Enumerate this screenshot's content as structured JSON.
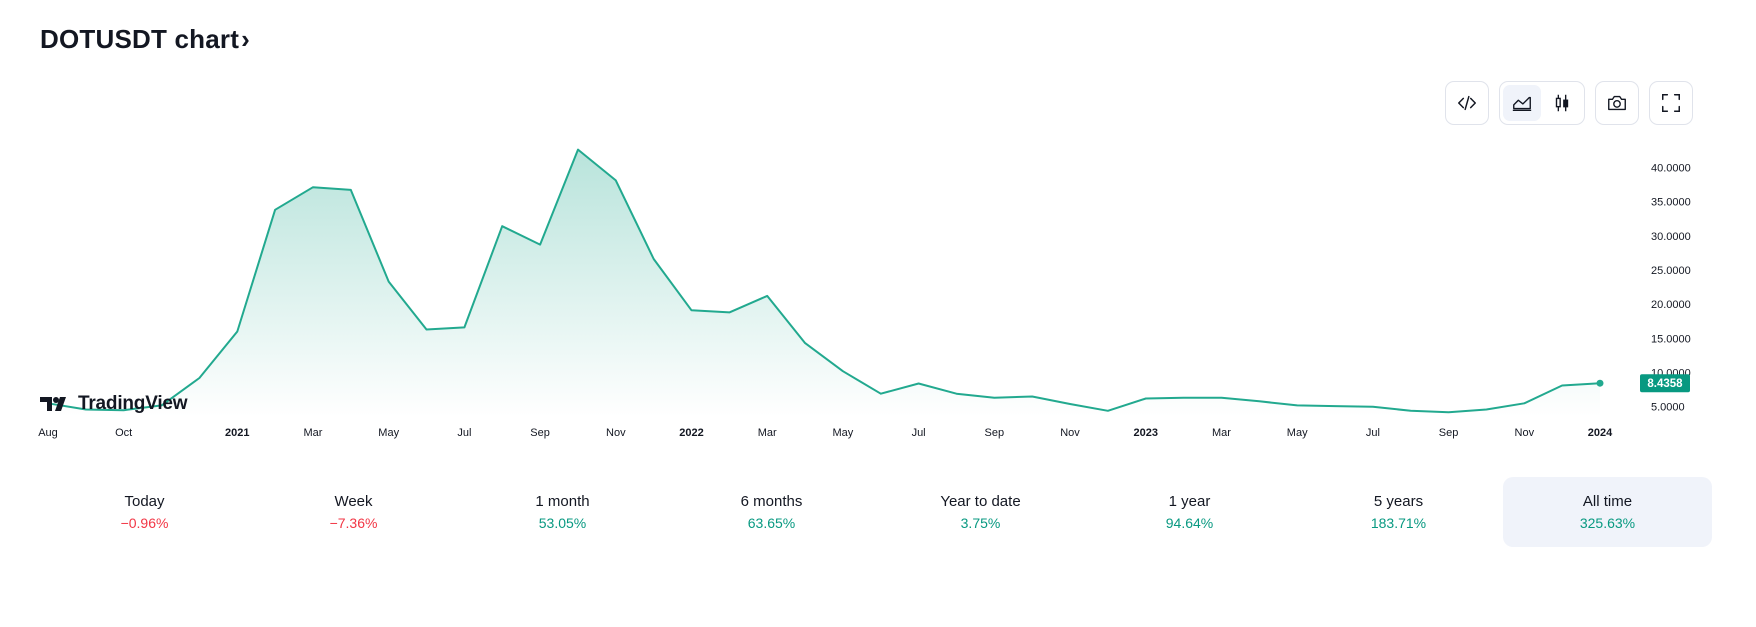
{
  "header": {
    "title": "DOTUSDT chart",
    "title_chevron": "›"
  },
  "toolbar": {
    "buttons": [
      {
        "name": "embed-code-button",
        "icon": "code-icon"
      },
      {
        "name": "line-chart-button",
        "icon": "area-chart-icon",
        "active": true
      },
      {
        "name": "candle-chart-button",
        "icon": "candles-icon"
      },
      {
        "name": "snapshot-button",
        "icon": "camera-icon"
      },
      {
        "name": "fullscreen-button",
        "icon": "fullscreen-icon"
      }
    ]
  },
  "watermark": {
    "logo_text": "TradingView"
  },
  "colors": {
    "line": "#22a98f",
    "area_top": "#22a98f",
    "pos": "#089981",
    "neg": "#f23645",
    "badge": "#089981"
  },
  "chart_data": {
    "type": "area",
    "x": [
      "2020-08",
      "2020-09",
      "2020-10",
      "2020-11",
      "2020-12",
      "2021-01",
      "2021-02",
      "2021-03",
      "2021-04",
      "2021-05",
      "2021-06",
      "2021-07",
      "2021-08",
      "2021-09",
      "2021-10",
      "2021-11",
      "2021-12",
      "2022-01",
      "2022-02",
      "2022-03",
      "2022-04",
      "2022-05",
      "2022-06",
      "2022-07",
      "2022-08",
      "2022-09",
      "2022-10",
      "2022-11",
      "2022-12",
      "2023-01",
      "2023-02",
      "2023-03",
      "2023-04",
      "2023-05",
      "2023-06",
      "2023-07",
      "2023-08",
      "2023-09",
      "2023-10",
      "2023-11",
      "2023-12",
      "2024-01"
    ],
    "values": [
      5.5,
      4.6,
      4.5,
      5.2,
      9.2,
      16.0,
      33.8,
      37.1,
      36.7,
      23.3,
      16.3,
      16.6,
      31.4,
      28.7,
      42.6,
      38.1,
      26.6,
      19.1,
      18.8,
      21.2,
      14.3,
      10.2,
      6.9,
      8.4,
      6.9,
      6.3,
      6.5,
      5.4,
      4.4,
      6.2,
      6.3,
      6.3,
      5.8,
      5.2,
      5.1,
      5.0,
      4.4,
      4.2,
      4.6,
      5.5,
      8.1,
      8.4358
    ],
    "last_value_label": "8.4358",
    "ylim": [
      3.5,
      44.0
    ],
    "y_ticks": [
      "5.0000",
      "10.0000",
      "15.0000",
      "20.0000",
      "25.0000",
      "30.0000",
      "35.0000",
      "40.0000"
    ],
    "y_tick_values": [
      5,
      10,
      15,
      20,
      25,
      30,
      35,
      40
    ],
    "x_ticks": [
      {
        "label": "Aug",
        "x": "2020-08"
      },
      {
        "label": "Oct",
        "x": "2020-10"
      },
      {
        "label": "2021",
        "x": "2021-01",
        "bold": true
      },
      {
        "label": "Mar",
        "x": "2021-03"
      },
      {
        "label": "May",
        "x": "2021-05"
      },
      {
        "label": "Jul",
        "x": "2021-07"
      },
      {
        "label": "Sep",
        "x": "2021-09"
      },
      {
        "label": "Nov",
        "x": "2021-11"
      },
      {
        "label": "2022",
        "x": "2022-01",
        "bold": true
      },
      {
        "label": "Mar",
        "x": "2022-03"
      },
      {
        "label": "May",
        "x": "2022-05"
      },
      {
        "label": "Jul",
        "x": "2022-07"
      },
      {
        "label": "Sep",
        "x": "2022-09"
      },
      {
        "label": "Nov",
        "x": "2022-11"
      },
      {
        "label": "2023",
        "x": "2023-01",
        "bold": true
      },
      {
        "label": "Mar",
        "x": "2023-03"
      },
      {
        "label": "May",
        "x": "2023-05"
      },
      {
        "label": "Jul",
        "x": "2023-07"
      },
      {
        "label": "Sep",
        "x": "2023-09"
      },
      {
        "label": "Nov",
        "x": "2023-11"
      },
      {
        "label": "2024",
        "x": "2024-01",
        "bold": true
      }
    ],
    "grid": false
  },
  "periods": [
    {
      "label": "Today",
      "value": "−0.96%",
      "sign": "neg"
    },
    {
      "label": "Week",
      "value": "−7.36%",
      "sign": "neg"
    },
    {
      "label": "1 month",
      "value": "53.05%",
      "sign": "pos"
    },
    {
      "label": "6 months",
      "value": "63.65%",
      "sign": "pos"
    },
    {
      "label": "Year to date",
      "value": "3.75%",
      "sign": "pos"
    },
    {
      "label": "1 year",
      "value": "94.64%",
      "sign": "pos"
    },
    {
      "label": "5 years",
      "value": "183.71%",
      "sign": "pos"
    },
    {
      "label": "All time",
      "value": "325.63%",
      "sign": "pos",
      "active": true
    }
  ]
}
